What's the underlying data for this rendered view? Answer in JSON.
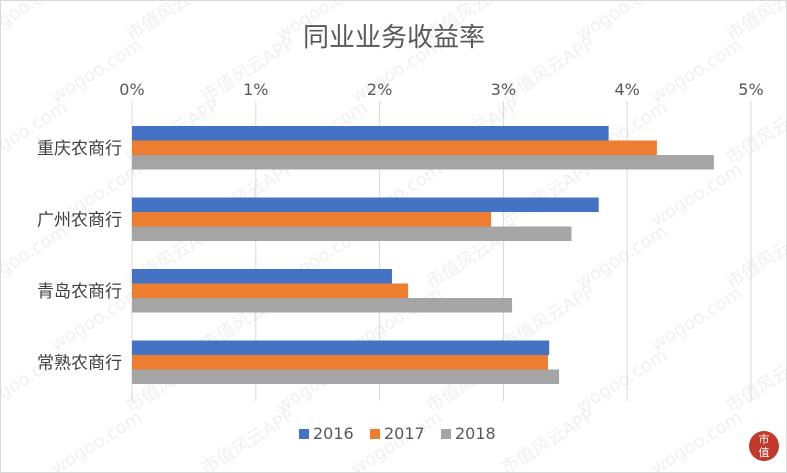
{
  "chart_data": {
    "type": "bar",
    "orientation": "horizontal",
    "title": "同业业务收益率",
    "categories": [
      "重庆农商行",
      "广州农商行",
      "青岛农商行",
      "常熟农商行"
    ],
    "series": [
      {
        "name": "2016",
        "color": "#4472c4",
        "values": [
          3.85,
          3.77,
          2.1,
          3.37
        ]
      },
      {
        "name": "2017",
        "color": "#ed7d31",
        "values": [
          4.24,
          2.9,
          2.23,
          3.36
        ]
      },
      {
        "name": "2018",
        "color": "#a5a5a5",
        "values": [
          4.7,
          3.55,
          3.07,
          3.45
        ]
      }
    ],
    "xlim": [
      0,
      5
    ],
    "xticks": [
      0,
      1,
      2,
      3,
      4,
      5
    ],
    "xtick_labels": [
      "0%",
      "1%",
      "2%",
      "3%",
      "4%",
      "5%"
    ],
    "x_axis_position": "top",
    "grid": "vertical",
    "legend_position": "bottom"
  },
  "watermark": {
    "text_a": "wogoo.com",
    "text_b": "市值风云APP"
  },
  "logo": {
    "char_1": "市",
    "char_2": "值"
  }
}
